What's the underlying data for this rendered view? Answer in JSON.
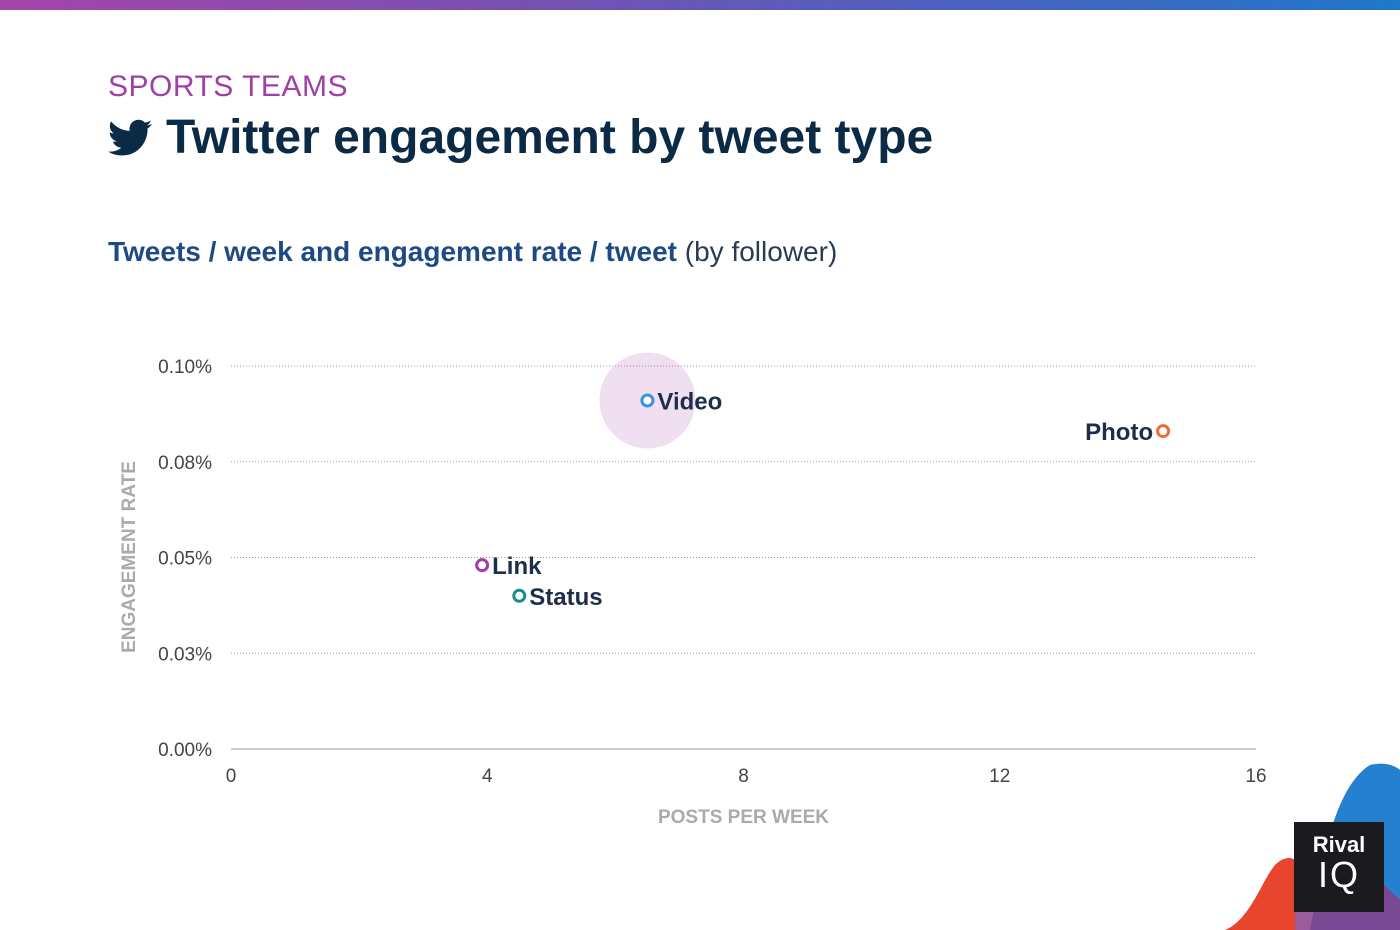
{
  "header": {
    "eyebrow": "SPORTS TEAMS",
    "title": "Twitter engagement by tweet type",
    "subtitle_bold": "Tweets / week and engagement rate / tweet",
    "subtitle_light": "(by follower)"
  },
  "logo": {
    "line1": "Rival",
    "line2": "IQ"
  },
  "colors": {
    "accent": "#a040a6",
    "title": "#0b2a45",
    "subtitle": "#1d4a86",
    "twitter_icon": "#0b2a45"
  },
  "chart_data": {
    "type": "scatter",
    "xlabel": "POSTS PER WEEK",
    "ylabel": "ENGAGEMENT RATE",
    "xlim": [
      0,
      16
    ],
    "ylim": [
      0,
      0.1
    ],
    "x_ticks": [
      0,
      4,
      8,
      12,
      16
    ],
    "x_tick_labels": [
      "0",
      "4",
      "8",
      "12",
      "16"
    ],
    "y_ticks": [
      0,
      0.025,
      0.05,
      0.075,
      0.1
    ],
    "y_tick_labels": [
      "0.00%",
      "0.03%",
      "0.05%",
      "0.08%",
      "0.10%"
    ],
    "grid": true,
    "highlight": "Video",
    "points": [
      {
        "name": "Video",
        "x": 6.5,
        "y": 0.091,
        "color": "#3d8fe0",
        "label_side": "right"
      },
      {
        "name": "Photo",
        "x": 14.55,
        "y": 0.083,
        "color": "#ee6b3c",
        "label_side": "left"
      },
      {
        "name": "Link",
        "x": 3.92,
        "y": 0.048,
        "color": "#a040a6",
        "label_side": "right"
      },
      {
        "name": "Status",
        "x": 4.5,
        "y": 0.04,
        "color": "#1a8c8c",
        "label_side": "right"
      }
    ]
  }
}
